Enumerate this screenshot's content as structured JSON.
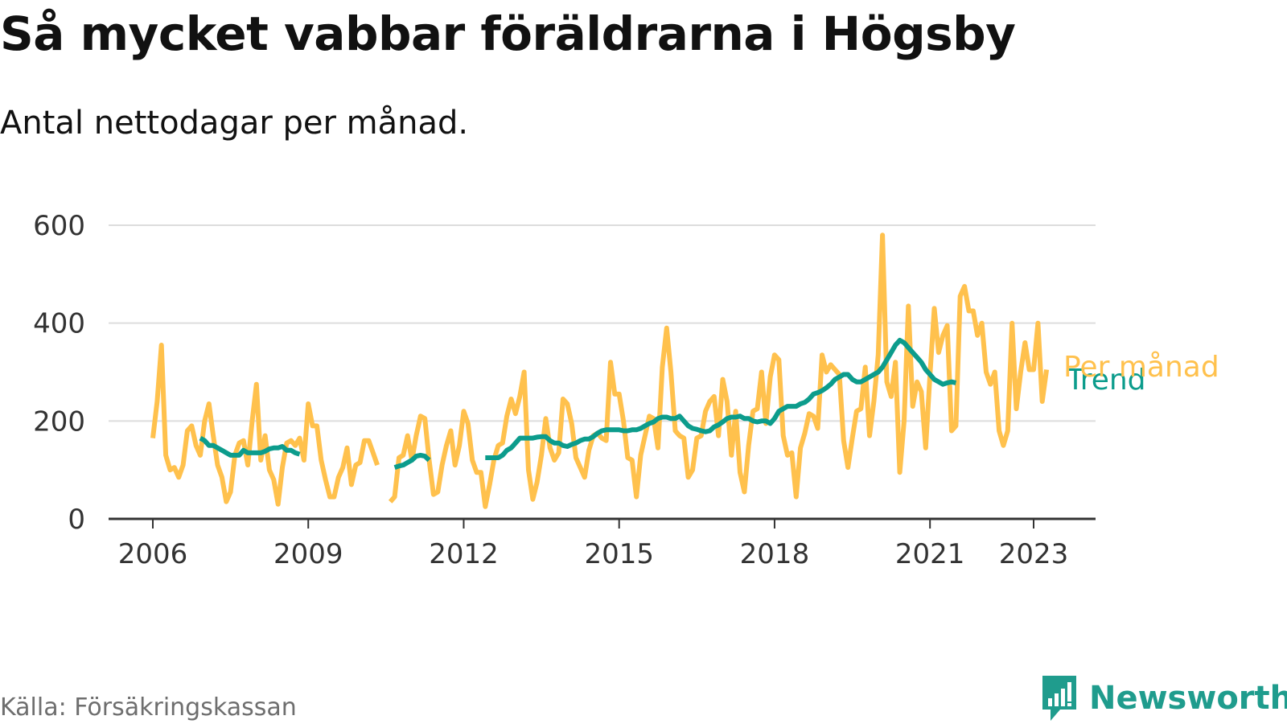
{
  "header": {
    "title": "Så mycket vabbar föräldrarna i Högsby",
    "subtitle": "Antal nettodagar per månad."
  },
  "footer": {
    "source": "Källa: Försäkringskassan",
    "brand": "Newsworthy"
  },
  "colors": {
    "monthly": "#FFC14D",
    "trend": "#0C9C8C",
    "gridline": "#dddddd",
    "axis": "#333333",
    "brand": "#1f9c8d",
    "source_text": "#6e6e6e"
  },
  "icons": {
    "brand_logo": "bar-chart-speech-bubble-icon"
  },
  "chart_data": {
    "type": "line",
    "ylim": [
      0,
      600
    ],
    "xlim": [
      2006,
      2024.25
    ],
    "yticks": [
      0,
      200,
      400,
      600
    ],
    "xticks": [
      2006,
      2009,
      2012,
      2015,
      2018,
      2021,
      2023
    ],
    "grid": "horizontal",
    "legend": "direct labels at line ends",
    "series": [
      {
        "name": "Per månad",
        "start": 2006.0,
        "step_months": 1,
        "values": [
          165,
          240,
          355,
          130,
          100,
          105,
          85,
          110,
          180,
          190,
          150,
          130,
          200,
          235,
          170,
          110,
          85,
          35,
          55,
          130,
          155,
          160,
          110,
          200,
          275,
          120,
          170,
          100,
          80,
          30,
          105,
          155,
          160,
          150,
          165,
          120,
          235,
          190,
          190,
          120,
          80,
          45,
          45,
          85,
          105,
          145,
          70,
          110,
          115,
          160,
          160,
          135,
          110,
          null,
          null,
          35,
          45,
          125,
          130,
          170,
          120,
          170,
          210,
          205,
          120,
          50,
          55,
          110,
          150,
          180,
          110,
          150,
          220,
          195,
          120,
          95,
          95,
          25,
          70,
          120,
          150,
          155,
          210,
          245,
          215,
          250,
          300,
          100,
          40,
          75,
          130,
          205,
          145,
          120,
          135,
          245,
          235,
          195,
          125,
          105,
          85,
          140,
          170,
          175,
          165,
          160,
          320,
          255,
          255,
          200,
          125,
          120,
          45,
          130,
          170,
          210,
          205,
          145,
          310,
          390,
          300,
          180,
          170,
          165,
          85,
          100,
          165,
          170,
          220,
          240,
          250,
          170,
          285,
          240,
          130,
          220,
          95,
          55,
          150,
          220,
          225,
          300,
          195,
          290,
          335,
          325,
          170,
          130,
          135,
          45,
          145,
          175,
          215,
          210,
          185,
          335,
          300,
          315,
          305,
          295,
          160,
          105,
          165,
          220,
          225,
          310,
          170,
          240,
          335,
          580,
          280,
          250,
          320,
          95,
          200,
          435,
          230,
          280,
          260,
          145,
          295,
          430,
          340,
          375,
          395,
          180,
          190,
          455,
          475,
          425,
          425,
          375,
          400,
          300,
          275,
          300,
          180,
          150,
          180,
          400,
          225,
          300,
          360,
          305,
          305,
          400,
          240,
          305
        ]
      },
      {
        "name": "Trend",
        "start": 2006.9167,
        "step_months": 1,
        "values": [
          165,
          160,
          150,
          150,
          145,
          140,
          135,
          130,
          130,
          130,
          140,
          135,
          135,
          135,
          135,
          138,
          143,
          145,
          145,
          148,
          140,
          140,
          135,
          132,
          null,
          null,
          null,
          null,
          null,
          null,
          null,
          null,
          null,
          null,
          null,
          null,
          null,
          null,
          null,
          null,
          null,
          null,
          null,
          null,
          null,
          105,
          108,
          110,
          115,
          120,
          128,
          130,
          128,
          120,
          null,
          null,
          null,
          null,
          null,
          null,
          null,
          null,
          null,
          null,
          null,
          null,
          125,
          125,
          125,
          125,
          130,
          140,
          145,
          155,
          165,
          165,
          165,
          165,
          167,
          168,
          168,
          160,
          155,
          155,
          150,
          148,
          152,
          155,
          160,
          163,
          163,
          168,
          175,
          180,
          182,
          182,
          182,
          182,
          180,
          180,
          182,
          182,
          185,
          190,
          195,
          198,
          205,
          208,
          208,
          205,
          205,
          210,
          200,
          190,
          185,
          183,
          180,
          178,
          180,
          188,
          192,
          198,
          205,
          208,
          208,
          210,
          205,
          205,
          200,
          198,
          200,
          200,
          195,
          205,
          220,
          225,
          230,
          230,
          230,
          235,
          238,
          245,
          255,
          258,
          262,
          268,
          275,
          285,
          290,
          295,
          295,
          285,
          280,
          280,
          285,
          290,
          295,
          300,
          310,
          325,
          340,
          355,
          365,
          360,
          350,
          340,
          330,
          320,
          305,
          295,
          285,
          280,
          275,
          278,
          280,
          278
        ]
      }
    ]
  }
}
